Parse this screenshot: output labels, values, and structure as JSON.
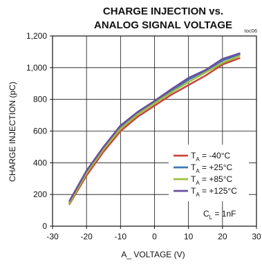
{
  "chart_data": {
    "type": "line",
    "title_lines": [
      "CHARGE INJECTION vs.",
      "ANALOG SIGNAL VOLTAGE"
    ],
    "figure_tag": "toc06",
    "xlabel": "A_ VOLTAGE (V)",
    "ylabel": "CHARGE INJECTION (pC)",
    "xlim": [
      -30,
      30
    ],
    "ylim": [
      0,
      1200
    ],
    "x_ticks": [
      -30,
      -20,
      -10,
      0,
      10,
      20,
      30
    ],
    "x_tick_labels": [
      "-30",
      "-20",
      "-10",
      "0",
      "10",
      "20",
      "30"
    ],
    "y_ticks": [
      0,
      200,
      400,
      600,
      800,
      1000,
      1200
    ],
    "y_tick_labels": [
      "0",
      "200",
      "400",
      "600",
      "800",
      "1,000",
      "1,200"
    ],
    "grid": true,
    "legend_position": "bottom-right",
    "series": [
      {
        "name_main": "T",
        "name_sub": "A",
        "name_rest": " = -40°C",
        "color": "#c8463c",
        "x": [
          -25,
          -20,
          -15,
          -10,
          -5,
          0,
          5,
          10,
          15,
          20,
          25
        ],
        "values": [
          140,
          320,
          470,
          600,
          690,
          760,
          830,
          890,
          950,
          1020,
          1060
        ]
      },
      {
        "name_main": "T",
        "name_sub": "A",
        "name_rest": " = +25°C",
        "color": "#3f76b8",
        "x": [
          -25,
          -20,
          -15,
          -10,
          -5,
          0,
          5,
          10,
          15,
          20,
          25
        ],
        "values": [
          150,
          345,
          490,
          625,
          715,
          785,
          855,
          925,
          980,
          1045,
          1085
        ]
      },
      {
        "name_main": "T",
        "name_sub": "A",
        "name_rest": " = +85°C",
        "color": "#9cbf3c",
        "x": [
          -25,
          -20,
          -15,
          -10,
          -5,
          0,
          5,
          10,
          15,
          20,
          25
        ],
        "values": [
          145,
          335,
          485,
          615,
          705,
          775,
          845,
          910,
          970,
          1030,
          1075
        ]
      },
      {
        "name_main": "T",
        "name_sub": "A",
        "name_rest": " = +125°C",
        "color": "#6b4f9e",
        "x": [
          -25,
          -20,
          -15,
          -10,
          -5,
          0,
          5,
          10,
          15,
          20,
          25
        ],
        "values": [
          160,
          350,
          500,
          635,
          720,
          790,
          865,
          935,
          985,
          1055,
          1090
        ]
      }
    ],
    "annotation_main": "C",
    "annotation_sub": "L",
    "annotation_rest": " = 1nF"
  }
}
